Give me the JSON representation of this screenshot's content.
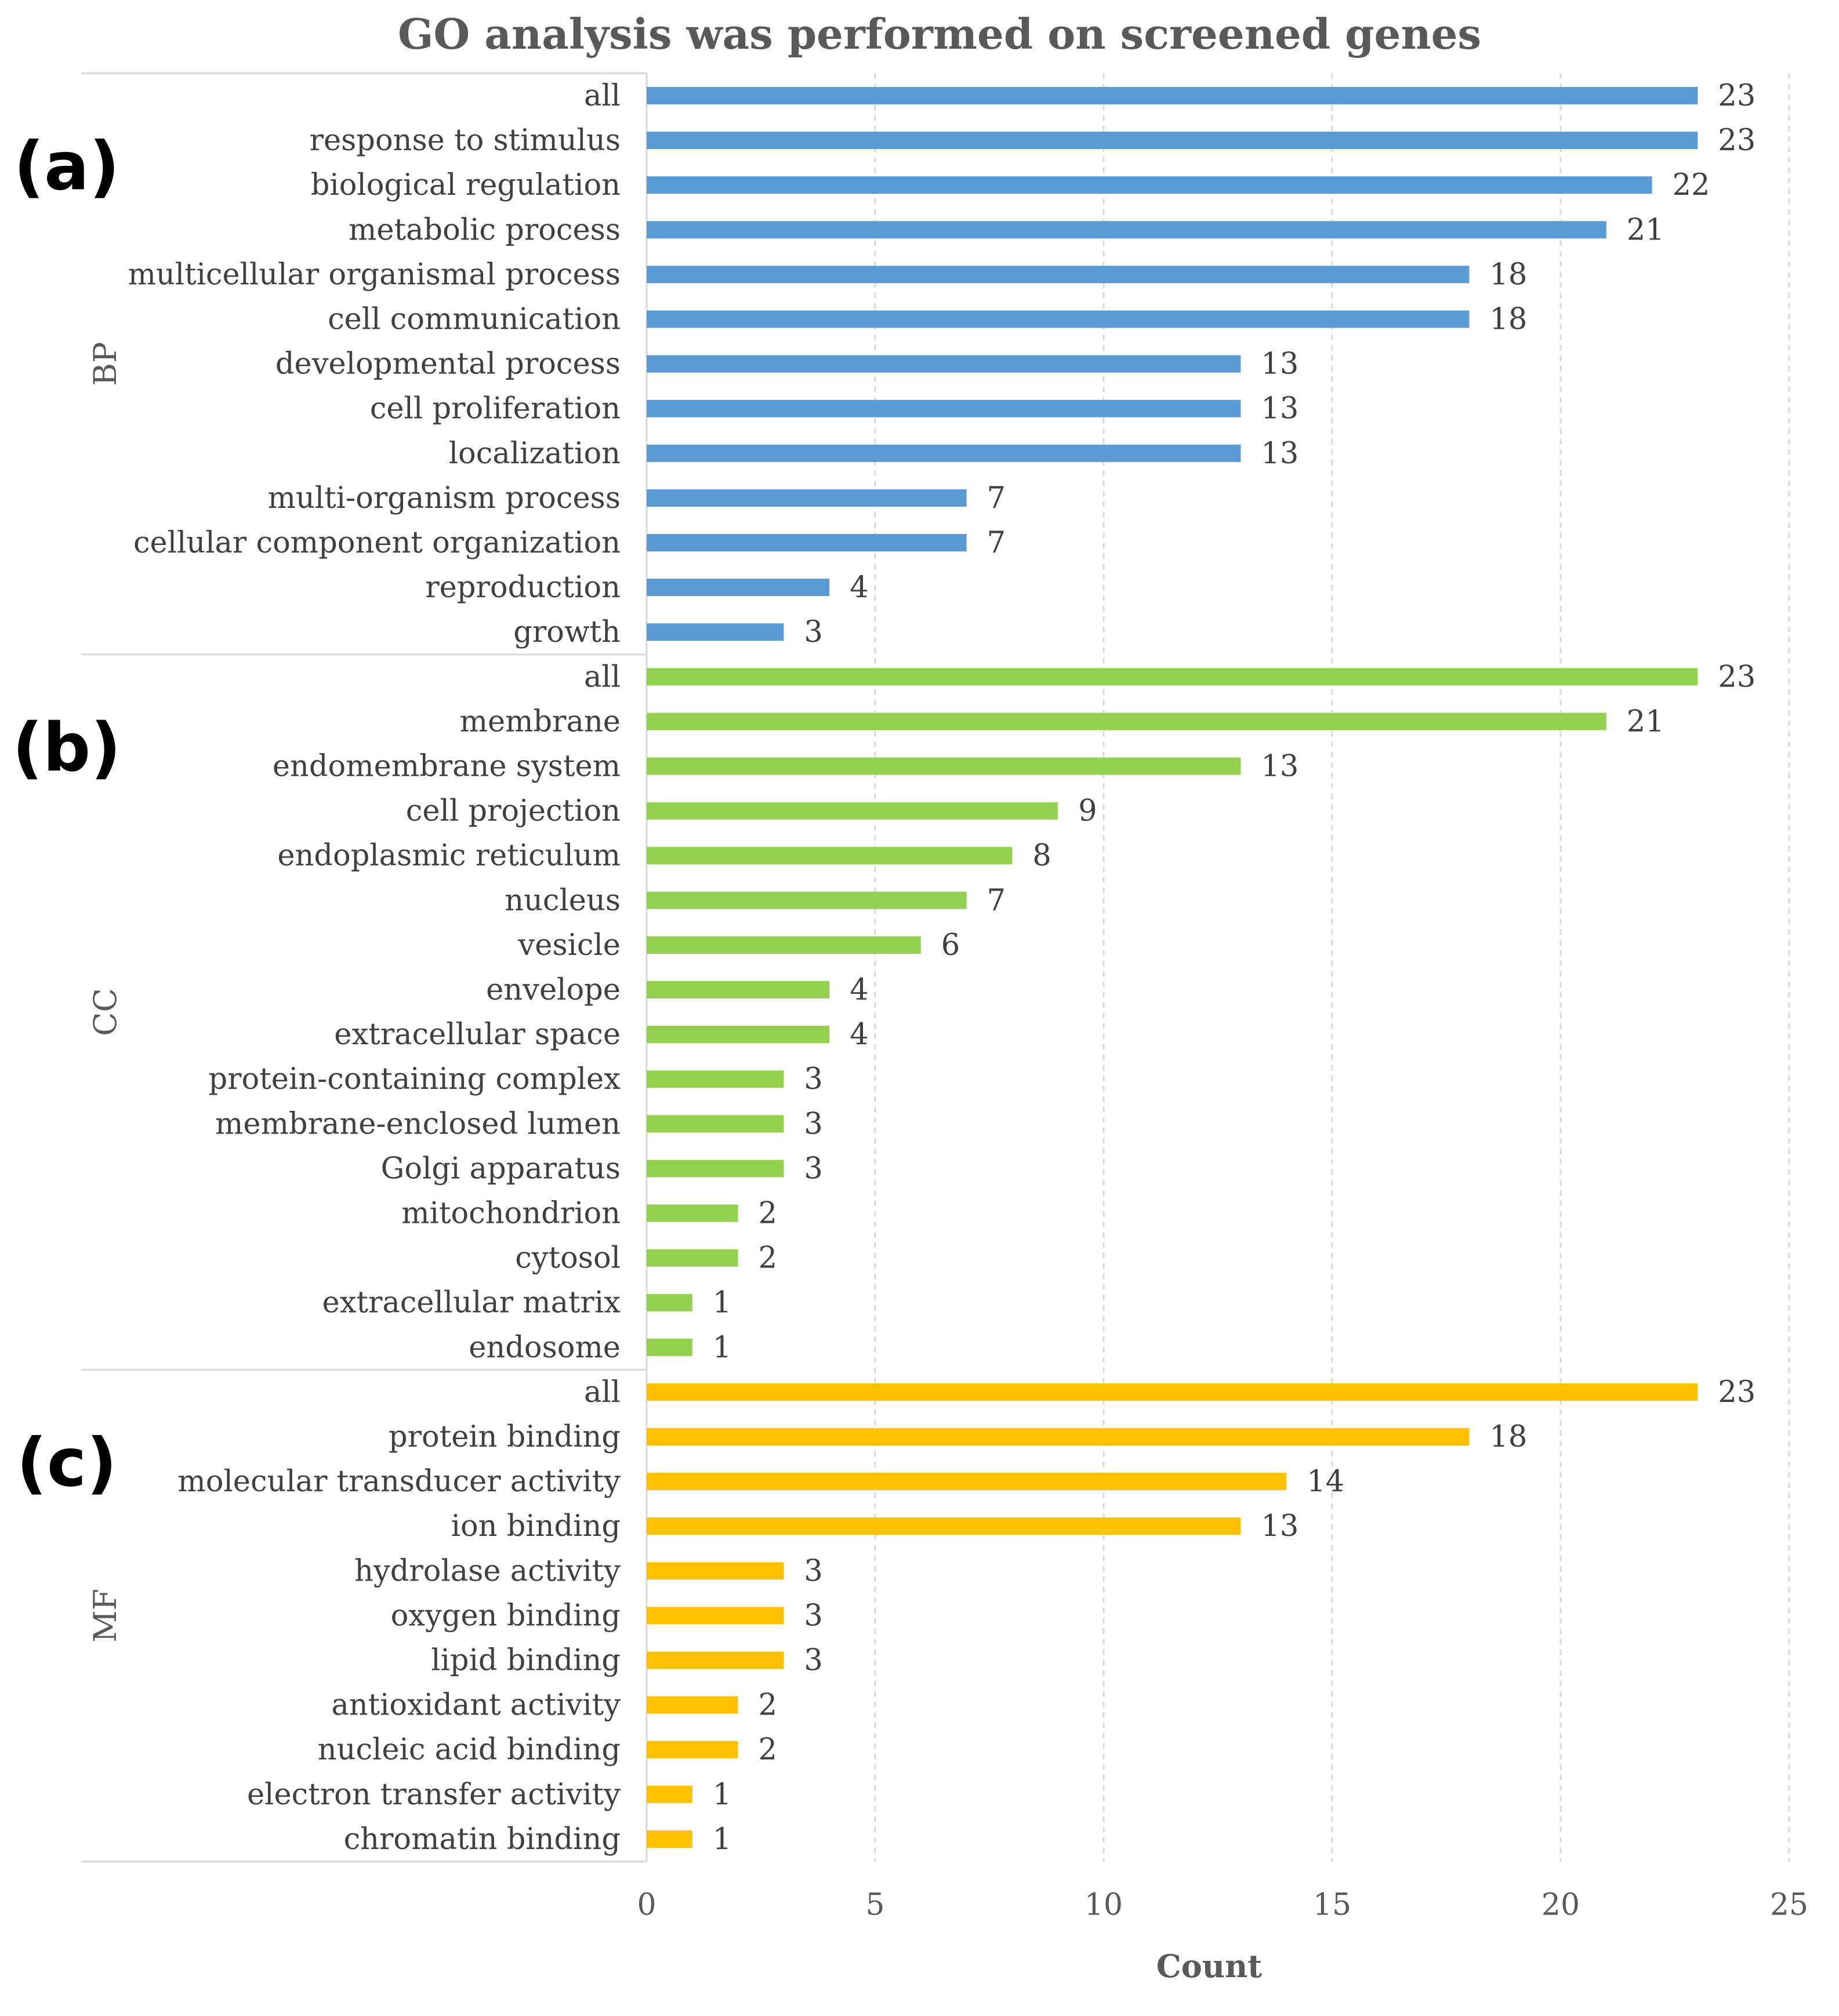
{
  "chart_data": {
    "type": "bar",
    "orientation": "horizontal",
    "title": "GO analysis was performed on screened genes",
    "xlabel": "Count",
    "ylabel": "",
    "xlim": [
      0,
      25
    ],
    "xticks": [
      0,
      5,
      10,
      15,
      20,
      25
    ],
    "grid": "vertical dashed",
    "groups": [
      {
        "panel": "(a)",
        "name": "BP",
        "color": "#5B9BD5",
        "categories": [
          "all",
          "response to stimulus",
          "biological regulation",
          "metabolic process",
          "multicellular organismal process",
          "cell communication",
          "developmental process",
          "cell proliferation",
          "localization",
          "multi-organism process",
          "cellular component organization",
          "reproduction",
          "growth"
        ],
        "values": [
          23,
          23,
          22,
          21,
          18,
          18,
          13,
          13,
          13,
          7,
          7,
          4,
          3
        ]
      },
      {
        "panel": "(b)",
        "name": "CC",
        "color": "#92D050",
        "categories": [
          "all",
          "membrane",
          "endomembrane system",
          "cell projection",
          "endoplasmic reticulum",
          "nucleus",
          "vesicle",
          "envelope",
          "extracellular space",
          "protein-containing complex",
          "membrane-enclosed lumen",
          "Golgi apparatus",
          "mitochondrion",
          "cytosol",
          "extracellular matrix",
          "endosome"
        ],
        "values": [
          23,
          21,
          13,
          9,
          8,
          7,
          6,
          4,
          4,
          3,
          3,
          3,
          2,
          2,
          1,
          1
        ]
      },
      {
        "panel": "(c)",
        "name": "MF",
        "color": "#FFC000",
        "categories": [
          "all",
          "protein binding",
          "molecular transducer activity",
          "ion binding",
          "hydrolase activity",
          "oxygen binding",
          "lipid binding",
          "antioxidant activity",
          "nucleic acid binding",
          "electron transfer activity",
          "chromatin binding"
        ],
        "values": [
          23,
          18,
          14,
          13,
          3,
          3,
          3,
          2,
          2,
          1,
          1
        ]
      }
    ]
  }
}
